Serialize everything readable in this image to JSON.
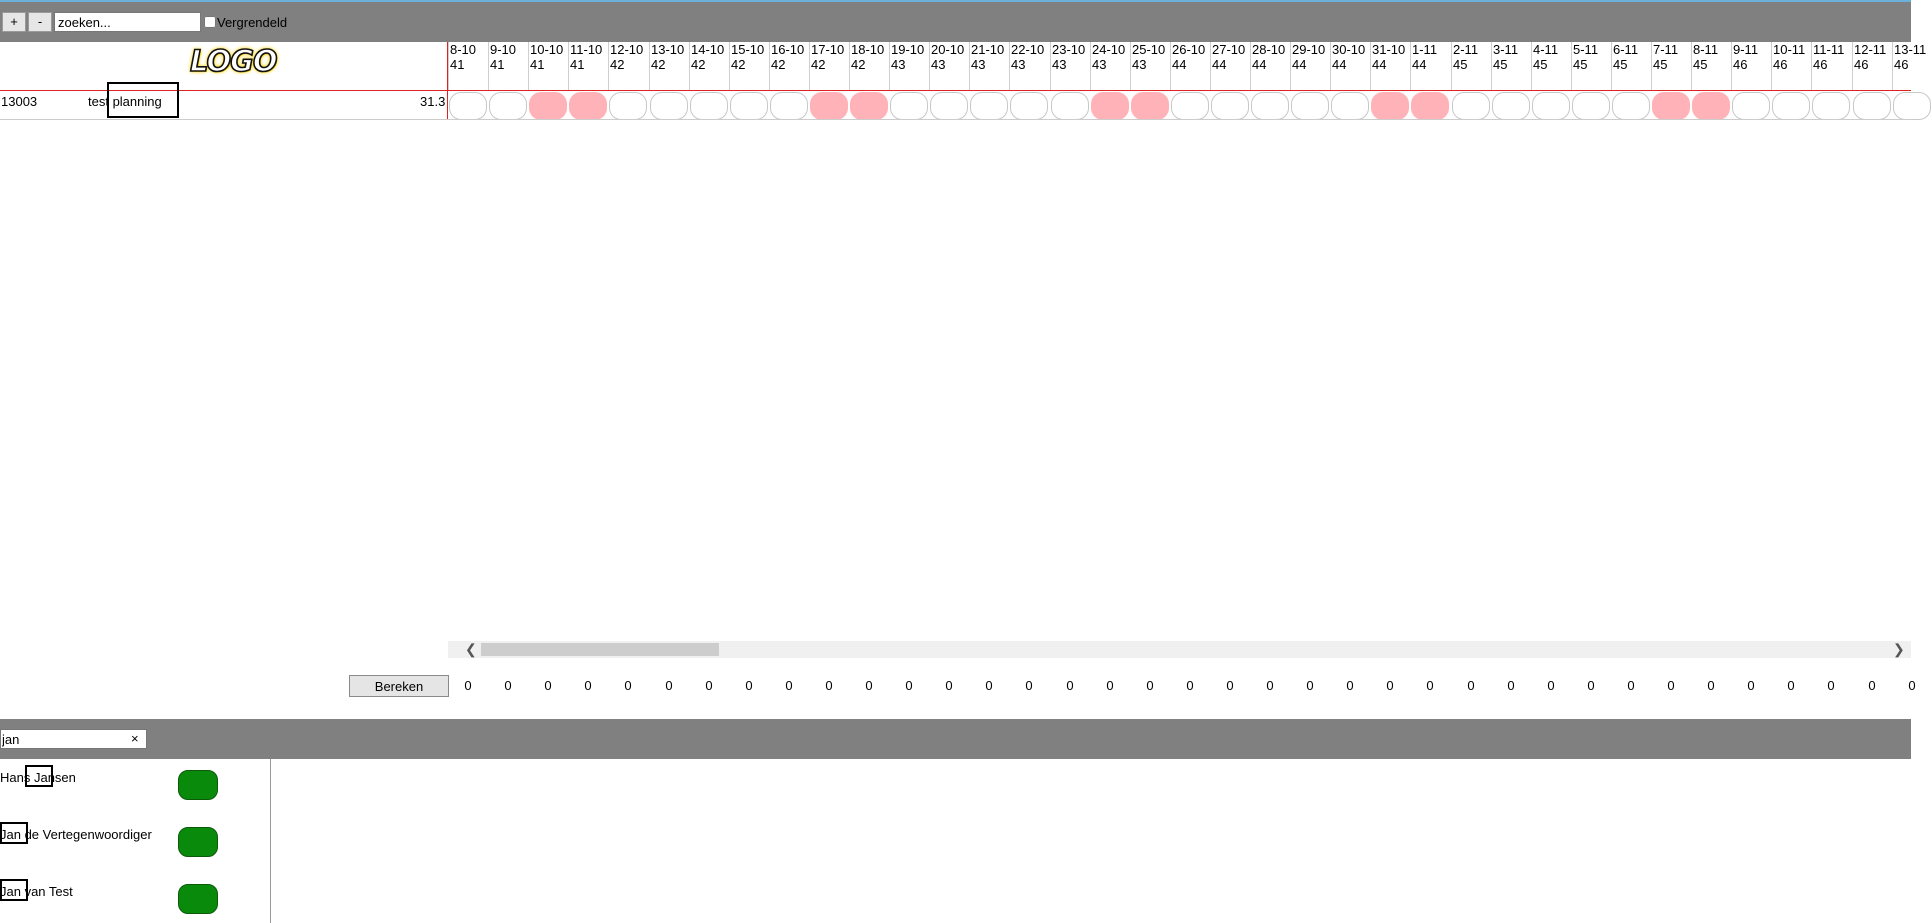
{
  "toolbar": {
    "plus": "+",
    "minus": "-",
    "search_value": "zoeken...",
    "lock_label": "Vergrendeld"
  },
  "logo": "LOGO",
  "row": {
    "id": "13003",
    "name": "test planning",
    "value": "31.3"
  },
  "dates": [
    {
      "d": "8-10",
      "w": "41"
    },
    {
      "d": "9-10",
      "w": "41"
    },
    {
      "d": "10-10",
      "w": "41"
    },
    {
      "d": "11-10",
      "w": "41"
    },
    {
      "d": "12-10",
      "w": "42"
    },
    {
      "d": "13-10",
      "w": "42"
    },
    {
      "d": "14-10",
      "w": "42"
    },
    {
      "d": "15-10",
      "w": "42"
    },
    {
      "d": "16-10",
      "w": "42"
    },
    {
      "d": "17-10",
      "w": "42"
    },
    {
      "d": "18-10",
      "w": "42"
    },
    {
      "d": "19-10",
      "w": "43"
    },
    {
      "d": "20-10",
      "w": "43"
    },
    {
      "d": "21-10",
      "w": "43"
    },
    {
      "d": "22-10",
      "w": "43"
    },
    {
      "d": "23-10",
      "w": "43"
    },
    {
      "d": "24-10",
      "w": "43"
    },
    {
      "d": "25-10",
      "w": "43"
    },
    {
      "d": "26-10",
      "w": "44"
    },
    {
      "d": "27-10",
      "w": "44"
    },
    {
      "d": "28-10",
      "w": "44"
    },
    {
      "d": "29-10",
      "w": "44"
    },
    {
      "d": "30-10",
      "w": "44"
    },
    {
      "d": "31-10",
      "w": "44"
    },
    {
      "d": "1-11",
      "w": "44"
    },
    {
      "d": "2-11",
      "w": "45"
    },
    {
      "d": "3-11",
      "w": "45"
    },
    {
      "d": "4-11",
      "w": "45"
    },
    {
      "d": "5-11",
      "w": "45"
    },
    {
      "d": "6-11",
      "w": "45"
    },
    {
      "d": "7-11",
      "w": "45"
    },
    {
      "d": "8-11",
      "w": "45"
    },
    {
      "d": "9-11",
      "w": "46"
    },
    {
      "d": "10-11",
      "w": "46"
    },
    {
      "d": "11-11",
      "w": "46"
    },
    {
      "d": "12-11",
      "w": "46"
    },
    {
      "d": "13-11",
      "w": "46"
    }
  ],
  "weekend_days": [
    2,
    3,
    9,
    10,
    16,
    17,
    23,
    24,
    30,
    31
  ],
  "calc_button": "Bereken",
  "totals": [
    "0",
    "0",
    "0",
    "0",
    "0",
    "0",
    "0",
    "0",
    "0",
    "0",
    "0",
    "0",
    "0",
    "0",
    "0",
    "0",
    "0",
    "0",
    "0",
    "0",
    "0",
    "0",
    "0",
    "0",
    "0",
    "0",
    "0",
    "0",
    "0",
    "0",
    "0",
    "0",
    "0",
    "0",
    "0",
    "0",
    "0"
  ],
  "bottom": {
    "search_value": "jan",
    "clear": "×",
    "people": [
      "Hans Jansen",
      "Jan de Vertegenwoordiger",
      "Jan van Test"
    ]
  },
  "colors": {
    "weekend": "#ffb3b8",
    "available": "#0a8a0a",
    "toolbar": "#808080"
  }
}
